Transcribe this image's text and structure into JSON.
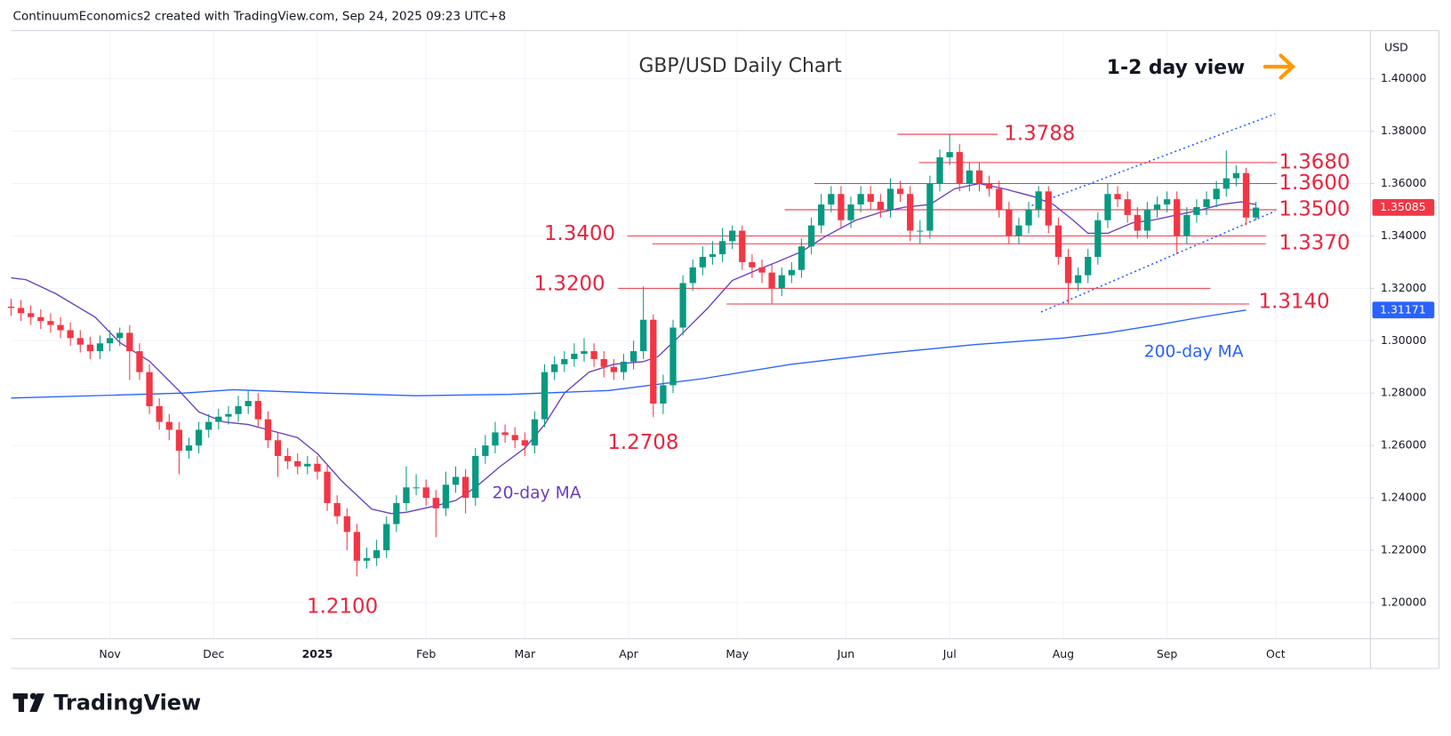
{
  "chart_data": {
    "type": "candlestick",
    "header": "ContinuumEconomics2 created with TradingView.com, Sep 24, 2025 09:23 UTC+8",
    "title": "GBP/USD Daily Chart",
    "view_note": "1-2 day view",
    "currency_label": "USD",
    "up_color": "#089981",
    "down_color": "#f23645",
    "grid": true,
    "xlim": [
      0,
      275
    ],
    "xticks": [
      {
        "value": 20,
        "label": "Nov"
      },
      {
        "value": 41,
        "label": "Dec"
      },
      {
        "value": 62,
        "label": "2025"
      },
      {
        "value": 84,
        "label": "Feb"
      },
      {
        "value": 104,
        "label": "Mar"
      },
      {
        "value": 125,
        "label": "Apr"
      },
      {
        "value": 147,
        "label": "May"
      },
      {
        "value": 169,
        "label": "Jun"
      },
      {
        "value": 190,
        "label": "Jul"
      },
      {
        "value": 213,
        "label": "Aug"
      },
      {
        "value": 234,
        "label": "Sep"
      },
      {
        "value": 256,
        "label": "Oct"
      }
    ],
    "ylim": [
      1.1862,
      1.4184
    ],
    "yticks": [
      {
        "value": 1.4,
        "label": "1.40000"
      },
      {
        "value": 1.38,
        "label": "1.38000"
      },
      {
        "value": 1.36,
        "label": "1.36000"
      },
      {
        "value": 1.34,
        "label": "1.34000"
      },
      {
        "value": 1.32,
        "label": "1.32000"
      },
      {
        "value": 1.3,
        "label": "1.30000"
      },
      {
        "value": 1.28,
        "label": "1.28000"
      },
      {
        "value": 1.26,
        "label": "1.26000"
      },
      {
        "value": 1.24,
        "label": "1.24000"
      },
      {
        "value": 1.22,
        "label": "1.22000"
      },
      {
        "value": 1.2,
        "label": "1.20000"
      }
    ],
    "last_price": 1.35085,
    "candles": {
      "x": [
        0,
        2,
        4,
        6,
        8,
        10,
        12,
        14,
        16,
        18,
        20,
        22,
        24,
        26,
        28,
        30,
        32,
        34,
        36,
        38,
        40,
        42,
        44,
        46,
        48,
        50,
        52,
        54,
        56,
        58,
        60,
        62,
        64,
        66,
        68,
        70,
        72,
        74,
        76,
        78,
        80,
        82,
        84,
        86,
        88,
        90,
        92,
        94,
        96,
        98,
        100,
        102,
        104,
        106,
        108,
        110,
        112,
        114,
        116,
        118,
        120,
        122,
        124,
        126,
        128,
        130,
        132,
        134,
        136,
        138,
        140,
        142,
        144,
        146,
        148,
        150,
        152,
        154,
        156,
        158,
        160,
        162,
        164,
        166,
        168,
        170,
        172,
        174,
        176,
        178,
        180,
        182,
        184,
        186,
        188,
        190,
        192,
        194,
        196,
        198,
        200,
        202,
        204,
        206,
        208,
        210,
        212,
        214,
        216,
        218,
        220,
        222,
        224,
        226,
        228,
        230,
        232,
        234,
        236,
        238,
        240,
        242,
        244,
        246,
        248,
        250,
        252
      ],
      "open": [
        1.313,
        1.3125,
        1.3105,
        1.309,
        1.3075,
        1.306,
        1.304,
        1.301,
        1.2985,
        1.296,
        1.299,
        1.301,
        1.303,
        1.296,
        1.288,
        1.275,
        1.269,
        1.266,
        1.258,
        1.26,
        1.266,
        1.269,
        1.271,
        1.272,
        1.275,
        1.277,
        1.27,
        1.262,
        1.256,
        1.254,
        1.252,
        1.253,
        1.25,
        1.238,
        1.233,
        1.227,
        1.216,
        1.217,
        1.22,
        1.23,
        1.238,
        1.244,
        1.244,
        1.24,
        1.236,
        1.245,
        1.248,
        1.24,
        1.256,
        1.26,
        1.265,
        1.264,
        1.262,
        1.26,
        1.27,
        1.288,
        1.291,
        1.293,
        1.295,
        1.296,
        1.293,
        1.29,
        1.288,
        1.292,
        1.296,
        1.308,
        1.276,
        1.283,
        1.305,
        1.322,
        1.328,
        1.332,
        1.333,
        1.338,
        1.342,
        1.33,
        1.328,
        1.326,
        1.32,
        1.325,
        1.327,
        1.336,
        1.344,
        1.352,
        1.356,
        1.346,
        1.352,
        1.356,
        1.353,
        1.35,
        1.358,
        1.356,
        1.342,
        1.342,
        1.36,
        1.37,
        1.372,
        1.36,
        1.365,
        1.36,
        1.358,
        1.35,
        1.34,
        1.344,
        1.35,
        1.357,
        1.344,
        1.332,
        1.322,
        1.325,
        1.332,
        1.346,
        1.356,
        1.354,
        1.348,
        1.342,
        1.35,
        1.352,
        1.354,
        1.34,
        1.348,
        1.351,
        1.354,
        1.358,
        1.362,
        1.364,
        1.347
      ],
      "high": [
        1.316,
        1.3155,
        1.3135,
        1.312,
        1.3105,
        1.309,
        1.307,
        1.304,
        1.3015,
        1.302,
        1.304,
        1.305,
        1.306,
        1.299,
        1.291,
        1.278,
        1.272,
        1.269,
        1.263,
        1.269,
        1.272,
        1.274,
        1.275,
        1.279,
        1.281,
        1.28,
        1.273,
        1.265,
        1.259,
        1.257,
        1.256,
        1.256,
        1.253,
        1.241,
        1.236,
        1.23,
        1.221,
        1.224,
        1.233,
        1.241,
        1.252,
        1.249,
        1.247,
        1.243,
        1.25,
        1.252,
        1.251,
        1.259,
        1.264,
        1.269,
        1.268,
        1.267,
        1.265,
        1.273,
        1.291,
        1.294,
        1.296,
        1.299,
        1.301,
        1.299,
        1.296,
        1.293,
        1.295,
        1.3,
        1.3207,
        1.31,
        1.287,
        1.308,
        1.325,
        1.331,
        1.336,
        1.338,
        1.343,
        1.344,
        1.344,
        1.333,
        1.331,
        1.329,
        1.328,
        1.33,
        1.339,
        1.347,
        1.356,
        1.359,
        1.359,
        1.355,
        1.359,
        1.359,
        1.356,
        1.362,
        1.361,
        1.359,
        1.346,
        1.363,
        1.373,
        1.3788,
        1.375,
        1.368,
        1.368,
        1.363,
        1.361,
        1.353,
        1.347,
        1.353,
        1.359,
        1.359,
        1.347,
        1.335,
        1.328,
        1.335,
        1.349,
        1.36,
        1.359,
        1.357,
        1.351,
        1.353,
        1.355,
        1.357,
        1.357,
        1.351,
        1.354,
        1.357,
        1.361,
        1.3726,
        1.367,
        1.366,
        1.353
      ],
      "low": [
        1.3095,
        1.3075,
        1.306,
        1.3045,
        1.303,
        1.301,
        1.298,
        1.2955,
        1.293,
        1.293,
        1.296,
        1.298,
        1.285,
        1.285,
        1.272,
        1.266,
        1.262,
        1.249,
        1.255,
        1.257,
        1.263,
        1.266,
        1.268,
        1.269,
        1.272,
        1.267,
        1.259,
        1.248,
        1.251,
        1.249,
        1.249,
        1.247,
        1.235,
        1.23,
        1.22,
        1.21,
        1.213,
        1.214,
        1.217,
        1.227,
        1.235,
        1.241,
        1.237,
        1.225,
        1.233,
        1.242,
        1.234,
        1.237,
        1.253,
        1.257,
        1.261,
        1.259,
        1.256,
        1.257,
        1.267,
        1.285,
        1.288,
        1.29,
        1.292,
        1.29,
        1.286,
        1.285,
        1.285,
        1.289,
        1.293,
        1.2708,
        1.272,
        1.28,
        1.302,
        1.319,
        1.325,
        1.329,
        1.33,
        1.335,
        1.327,
        1.324,
        1.322,
        1.314,
        1.317,
        1.322,
        1.324,
        1.333,
        1.341,
        1.349,
        1.343,
        1.343,
        1.349,
        1.35,
        1.347,
        1.347,
        1.353,
        1.338,
        1.337,
        1.339,
        1.357,
        1.367,
        1.357,
        1.357,
        1.357,
        1.355,
        1.347,
        1.337,
        1.337,
        1.341,
        1.347,
        1.341,
        1.329,
        1.314,
        1.319,
        1.322,
        1.329,
        1.343,
        1.351,
        1.345,
        1.339,
        1.339,
        1.347,
        1.349,
        1.333,
        1.337,
        1.345,
        1.348,
        1.351,
        1.355,
        1.359,
        1.344,
        1.346
      ],
      "close": [
        1.3125,
        1.3105,
        1.309,
        1.3075,
        1.306,
        1.304,
        1.301,
        1.2985,
        1.296,
        1.299,
        1.301,
        1.303,
        1.296,
        1.288,
        1.275,
        1.269,
        1.266,
        1.258,
        1.26,
        1.266,
        1.269,
        1.271,
        1.272,
        1.275,
        1.277,
        1.27,
        1.262,
        1.256,
        1.254,
        1.252,
        1.253,
        1.25,
        1.238,
        1.233,
        1.227,
        1.216,
        1.217,
        1.22,
        1.23,
        1.238,
        1.244,
        1.244,
        1.24,
        1.236,
        1.245,
        1.248,
        1.24,
        1.256,
        1.26,
        1.265,
        1.264,
        1.262,
        1.26,
        1.27,
        1.288,
        1.291,
        1.293,
        1.295,
        1.296,
        1.293,
        1.29,
        1.288,
        1.292,
        1.296,
        1.308,
        1.276,
        1.283,
        1.305,
        1.322,
        1.328,
        1.332,
        1.333,
        1.338,
        1.342,
        1.33,
        1.328,
        1.326,
        1.32,
        1.325,
        1.327,
        1.336,
        1.344,
        1.352,
        1.356,
        1.346,
        1.352,
        1.356,
        1.353,
        1.35,
        1.358,
        1.356,
        1.342,
        1.342,
        1.36,
        1.37,
        1.372,
        1.36,
        1.365,
        1.36,
        1.358,
        1.35,
        1.34,
        1.344,
        1.35,
        1.357,
        1.344,
        1.332,
        1.322,
        1.325,
        1.332,
        1.346,
        1.356,
        1.354,
        1.348,
        1.342,
        1.35,
        1.352,
        1.354,
        1.34,
        1.348,
        1.351,
        1.354,
        1.358,
        1.362,
        1.364,
        1.347,
        1.3508
      ]
    },
    "series": [
      {
        "name": "20-day MA",
        "color": "#6a3fc0",
        "x": [
          0,
          3,
          9,
          17,
          22,
          28,
          34,
          38,
          43,
          48,
          52,
          58,
          62,
          67,
          73,
          77,
          80,
          86,
          90,
          94,
          99,
          104,
          108,
          112,
          117,
          122,
          128,
          131,
          136,
          141,
          146,
          151,
          155,
          160,
          165,
          171,
          176,
          181,
          186,
          191,
          196,
          201,
          207,
          211,
          215,
          218,
          222,
          227,
          231,
          236,
          241,
          245,
          249,
          252
        ],
        "values": [
          1.324,
          1.3233,
          1.318,
          1.309,
          1.2993,
          1.2922,
          1.2809,
          1.2728,
          1.269,
          1.268,
          1.266,
          1.263,
          1.2569,
          1.2463,
          1.2357,
          1.234,
          1.2345,
          1.237,
          1.239,
          1.244,
          1.252,
          1.259,
          1.268,
          1.28,
          1.288,
          1.291,
          1.292,
          1.294,
          1.303,
          1.3124,
          1.323,
          1.327,
          1.33,
          1.334,
          1.34,
          1.346,
          1.349,
          1.351,
          1.352,
          1.358,
          1.36,
          1.358,
          1.355,
          1.352,
          1.346,
          1.341,
          1.341,
          1.345,
          1.346,
          1.348,
          1.35,
          1.352,
          1.353,
          1.352
        ]
      },
      {
        "name": "200-day MA",
        "color": "#2962ff",
        "last_value": 1.31171,
        "x": [
          0,
          35,
          45,
          63,
          82,
          101,
          121,
          140,
          158,
          176,
          195,
          213,
          222,
          232,
          241,
          250
        ],
        "values": [
          1.2781,
          1.28,
          1.2813,
          1.28,
          1.279,
          1.2795,
          1.281,
          1.2855,
          1.291,
          1.295,
          1.2985,
          1.301,
          1.303,
          1.306,
          1.309,
          1.3117
        ]
      }
    ],
    "levels": [
      {
        "value": 1.3788,
        "label": "1.3788"
      },
      {
        "value": 1.368,
        "label": "1.3680"
      },
      {
        "value": 1.36,
        "label": "1.3600"
      },
      {
        "value": 1.35,
        "label": "1.3500"
      },
      {
        "value": 1.34,
        "label": "1.3400"
      },
      {
        "value": 1.337,
        "label": "1.3370"
      },
      {
        "value": 1.32,
        "label": "1.3200"
      },
      {
        "value": 1.314,
        "label": "1.3140"
      },
      {
        "value": 1.21,
        "label": "1.2100"
      },
      {
        "value": 1.2708,
        "label": "1.2708"
      }
    ]
  },
  "branding": "TradingView"
}
